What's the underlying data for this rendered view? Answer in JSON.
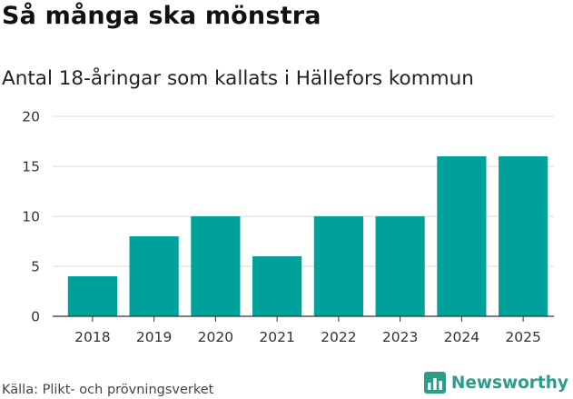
{
  "title": "Så många ska mönstra",
  "subtitle": "Antal 18-åringar som kallats i Hällefors kommun",
  "source": "Källa: Plikt- och prövningsverket",
  "brand": "Newsworthy",
  "colors": {
    "bar": "#00a19a",
    "grid": "#d9d9d9",
    "axis": "#333333",
    "brand": "#2e9c8a"
  },
  "chart_data": {
    "type": "bar",
    "title": "Så många ska mönstra",
    "subtitle": "Antal 18-åringar som kallats i Hällefors kommun",
    "xlabel": "",
    "ylabel": "",
    "categories": [
      "2018",
      "2019",
      "2020",
      "2021",
      "2022",
      "2023",
      "2024",
      "2025"
    ],
    "values": [
      4,
      8,
      10,
      6,
      10,
      10,
      16,
      16
    ],
    "ylim": [
      0,
      20
    ],
    "yticks": [
      0,
      5,
      10,
      15,
      20
    ],
    "grid": true
  }
}
